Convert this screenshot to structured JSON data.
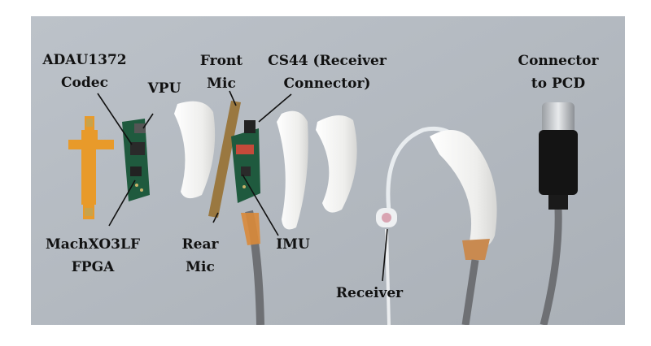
{
  "labels": {
    "adau_line1": "ADAU1372",
    "adau_line2": "Codec",
    "vpu": "VPU",
    "front_line1": "Front",
    "front_line2": "Mic",
    "cs44_line1": "CS44 (Receiver",
    "cs44_line2": "Connector)",
    "conn_line1": "Connector",
    "conn_line2": "to PCD",
    "mach_line1": "MachXO3LF",
    "mach_line2": "FPGA",
    "rear_line1": "Rear",
    "rear_line2": "Mic",
    "imu": "IMU",
    "receiver": "Receiver"
  },
  "colors": {
    "background": "#b6bcc3",
    "flex_pcb": "#e89a2a",
    "pcb_green": "#1f5a3e",
    "shell_white": "#f4f4f2",
    "cable_gray": "#6e7074",
    "connector_black": "#141414"
  }
}
